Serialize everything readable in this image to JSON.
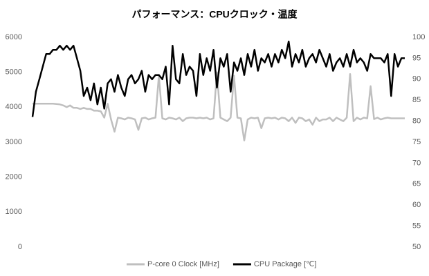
{
  "chart_data": {
    "type": "line",
    "title": "パフォーマンス：CPUクロック・温度",
    "series": [
      {
        "name": "P-core 0 Clock [MHz]",
        "color": "#bfbfbf",
        "axis": "y",
        "values": [
          4100,
          4100,
          4100,
          4100,
          4100,
          4100,
          4100,
          4090,
          4080,
          4050,
          4000,
          4050,
          3980,
          3980,
          3950,
          3980,
          3950,
          3950,
          3900,
          3900,
          3880,
          3700,
          4100,
          3650,
          3300,
          3700,
          3680,
          3650,
          3700,
          3680,
          3650,
          3350,
          3680,
          3700,
          3650,
          3680,
          3700,
          4900,
          3680,
          3650,
          3700,
          3680,
          3650,
          3700,
          3600,
          3680,
          3700,
          3700,
          3680,
          3700,
          3680,
          3700,
          3650,
          3680,
          5000,
          3700,
          3650,
          3600,
          3700,
          4900,
          3700,
          3680,
          3050,
          3650,
          3700,
          3680,
          3700,
          3400,
          3680,
          3700,
          3680,
          3700,
          3650,
          3700,
          3680,
          3600,
          3700,
          3550,
          3700,
          3680,
          3600,
          3650,
          3500,
          3700,
          3600,
          3650,
          3650,
          3700,
          3600,
          3700,
          3650,
          3600,
          3700,
          4950,
          3600,
          3700,
          3650,
          3700,
          3680,
          4600,
          3660,
          3700,
          3650,
          3680,
          3700,
          3680,
          3680,
          3680,
          3680,
          3680
        ]
      },
      {
        "name": "CPU Package [℃]",
        "color": "#000000",
        "axis": "y2",
        "values": [
          81,
          87,
          90,
          93,
          96,
          96,
          97,
          97,
          98,
          97,
          98,
          97,
          98,
          95,
          92,
          86,
          88,
          85,
          89,
          84,
          88,
          83,
          89,
          90,
          87,
          91,
          88,
          86,
          90,
          91,
          89,
          90,
          92,
          87,
          91,
          90,
          91,
          91,
          90,
          93,
          84,
          98,
          90,
          89,
          96,
          91,
          93,
          92,
          86,
          96,
          91,
          95,
          92,
          97,
          88,
          95,
          93,
          96,
          87,
          94,
          92,
          95,
          91,
          96,
          93,
          97,
          92,
          95,
          94,
          96,
          93,
          96,
          94,
          97,
          95,
          99,
          93,
          96,
          94,
          97,
          93,
          95,
          96,
          94,
          97,
          95,
          93,
          96,
          92,
          94,
          95,
          93,
          96,
          93,
          97,
          94,
          95,
          94,
          92,
          96,
          95,
          95,
          95,
          94,
          96,
          86,
          96,
          93,
          95,
          95
        ]
      }
    ],
    "ylim": [
      0,
      6000
    ],
    "yticks": [
      0,
      1000,
      2000,
      3000,
      4000,
      5000,
      6000
    ],
    "y2lim": [
      50,
      100
    ],
    "y2ticks": [
      50,
      55,
      60,
      65,
      70,
      75,
      80,
      85,
      90,
      95,
      100
    ],
    "grid": false,
    "legend": "bottom"
  }
}
